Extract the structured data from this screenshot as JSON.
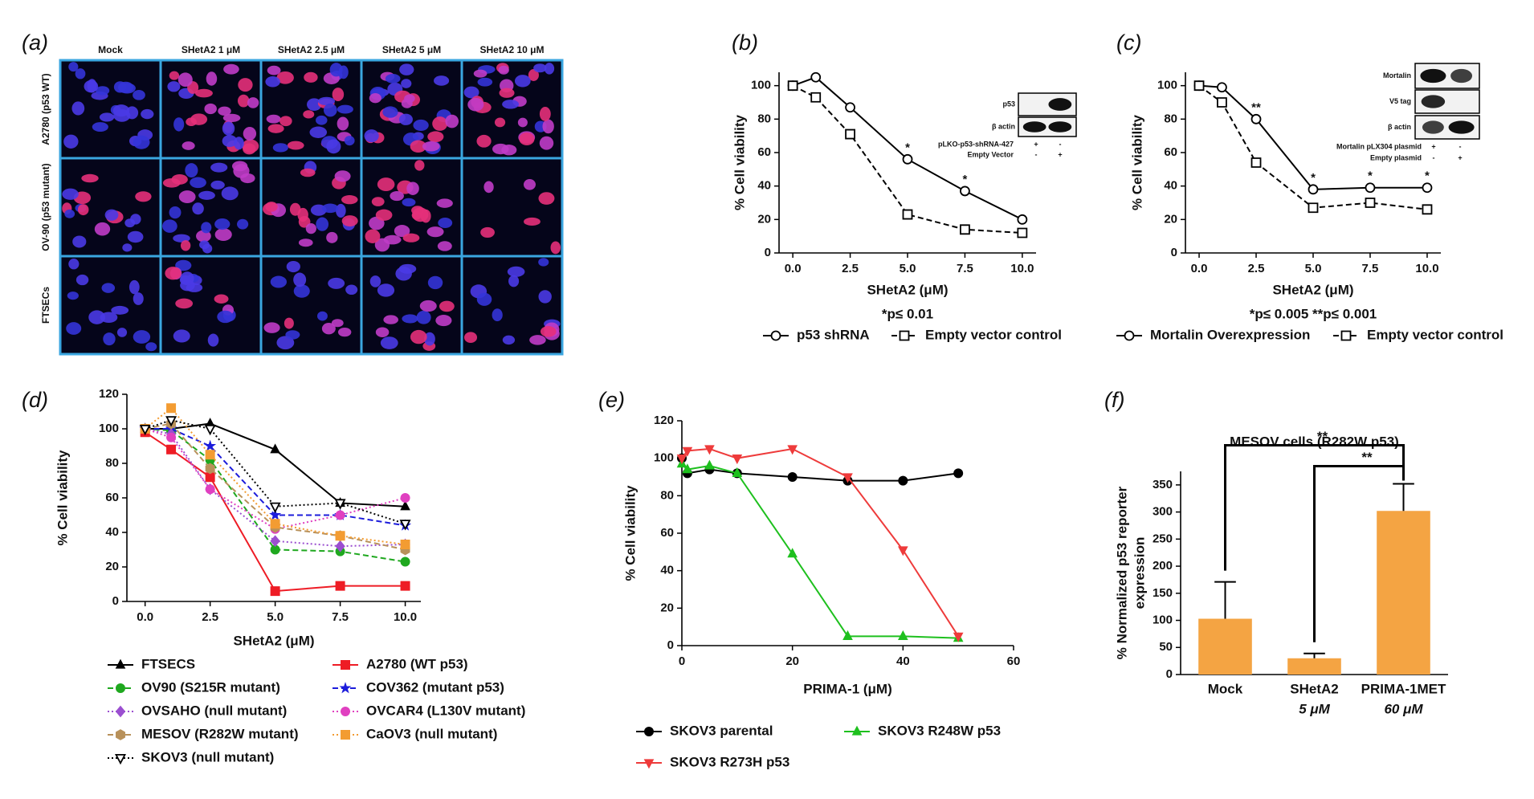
{
  "panel_a": {
    "label": "(a)",
    "columns": [
      "Mock",
      "SHetA2 1 μM",
      "SHetA2 2.5 μM",
      "SHetA2 5 μM",
      "SHetA2 10 μM"
    ],
    "rows": [
      "A2780 (p53 WT)",
      "OV-90 (p53 mutant)",
      "FTSECs"
    ]
  },
  "chart_data": [
    {
      "type": "line",
      "panel_label": "(b)",
      "xlabel": "SHetA2 (μM)",
      "ylabel": "% Cell viability",
      "x": [
        0,
        1,
        2.5,
        5,
        7.5,
        10
      ],
      "xlim": [
        -0.6,
        10.6
      ],
      "ylim": [
        0,
        108
      ],
      "xticks": [
        {
          "value": 0,
          "label": "0.0"
        },
        {
          "value": 2.5,
          "label": "2.5"
        },
        {
          "value": 5,
          "label": "5.0"
        },
        {
          "value": 7.5,
          "label": "7.5"
        },
        {
          "value": 10,
          "label": "10.0"
        }
      ],
      "yticks": [
        0,
        20,
        40,
        60,
        80,
        100
      ],
      "series": [
        {
          "name": "p53 shRNA",
          "color": "#000000",
          "marker": "circle",
          "open": true,
          "line_style": "solid",
          "values": [
            100,
            105,
            87,
            56,
            37,
            20
          ]
        },
        {
          "name": "Empty vector control",
          "color": "#000000",
          "marker": "square",
          "open": true,
          "line_style": "dashed",
          "values": [
            100,
            93,
            71,
            23,
            14,
            12
          ]
        }
      ],
      "annotations": [
        {
          "text": "*",
          "x": 5
        },
        {
          "text": "*",
          "x": 7.5
        }
      ],
      "footnote": "*p≤ 0.01",
      "inset": {
        "rows": [
          "p53",
          "β actin"
        ],
        "conditions": [
          {
            "label": "pLKO-p53-shRNA-427",
            "signs": [
              "+",
              "-"
            ]
          },
          {
            "label": "Empty Vector",
            "signs": [
              "-",
              "+"
            ]
          }
        ]
      }
    },
    {
      "type": "line",
      "panel_label": "(c)",
      "xlabel": "SHetA2 (μM)",
      "ylabel": "% Cell viability",
      "x": [
        0,
        1,
        2.5,
        5,
        7.5,
        10
      ],
      "xlim": [
        -0.6,
        10.6
      ],
      "ylim": [
        0,
        108
      ],
      "xticks": [
        {
          "value": 0,
          "label": "0.0"
        },
        {
          "value": 2.5,
          "label": "2.5"
        },
        {
          "value": 5,
          "label": "5.0"
        },
        {
          "value": 7.5,
          "label": "7.5"
        },
        {
          "value": 10,
          "label": "10.0"
        }
      ],
      "yticks": [
        0,
        20,
        40,
        60,
        80,
        100
      ],
      "series": [
        {
          "name": "Mortalin Overexpression",
          "color": "#000000",
          "marker": "circle",
          "open": true,
          "line_style": "solid",
          "values": [
            100,
            99,
            80,
            38,
            39,
            39
          ]
        },
        {
          "name": "Empty vector control",
          "color": "#000000",
          "marker": "square",
          "open": true,
          "line_style": "dashed",
          "values": [
            100,
            90,
            54,
            27,
            30,
            26
          ]
        }
      ],
      "annotations": [
        {
          "text": "**",
          "x": 2.5
        },
        {
          "text": "*",
          "x": 5
        },
        {
          "text": "*",
          "x": 7.5
        },
        {
          "text": "*",
          "x": 10
        }
      ],
      "footnote": "*p≤ 0.005   **p≤ 0.001",
      "inset": {
        "rows": [
          "Mortalin",
          "V5 tag",
          "β actin"
        ],
        "conditions": [
          {
            "label": "Mortalin pLX304 plasmid",
            "signs": [
              "+",
              "-"
            ]
          },
          {
            "label": "Empty plasmid",
            "signs": [
              "-",
              "+"
            ]
          }
        ]
      }
    },
    {
      "type": "line",
      "panel_label": "(d)",
      "xlabel": "SHetA2 (μM)",
      "ylabel": "% Cell viability",
      "x": [
        0,
        1,
        2.5,
        5,
        7.5,
        10
      ],
      "xlim": [
        -0.7,
        10.6
      ],
      "ylim": [
        0,
        120
      ],
      "xticks": [
        {
          "value": 0,
          "label": "0.0"
        },
        {
          "value": 2.5,
          "label": "2.5"
        },
        {
          "value": 5,
          "label": "5.0"
        },
        {
          "value": 7.5,
          "label": "7.5"
        },
        {
          "value": 10,
          "label": "10.0"
        }
      ],
      "yticks": [
        0,
        20,
        40,
        60,
        80,
        100,
        120
      ],
      "series": [
        {
          "name": "FTSECS",
          "color": "#000000",
          "marker": "triangle",
          "open": false,
          "line_style": "solid",
          "values": [
            100,
            100,
            103,
            88,
            57,
            55
          ]
        },
        {
          "name": "A2780 (WT p53)",
          "color": "#ee1c25",
          "marker": "square",
          "open": false,
          "line_style": "solid",
          "values": [
            98,
            88,
            72,
            6,
            9,
            9
          ]
        },
        {
          "name": "OV90 (S215R mutant)",
          "color": "#1fa81f",
          "marker": "circle",
          "open": false,
          "line_style": "dashed",
          "values": [
            100,
            99,
            82,
            30,
            29,
            23
          ]
        },
        {
          "name": "COV362 (mutant p53)",
          "color": "#1c1cdb",
          "marker": "star",
          "open": false,
          "line_style": "dashed",
          "values": [
            100,
            100,
            90,
            50,
            50,
            44
          ]
        },
        {
          "name": "OVSAHO (null mutant)",
          "color": "#9b4fd0",
          "marker": "diamond",
          "open": false,
          "line_style": "dotted",
          "values": [
            100,
            97,
            65,
            35,
            32,
            33
          ]
        },
        {
          "name": "OVCAR4 (L130V mutant)",
          "color": "#e040c0",
          "marker": "circle",
          "open": false,
          "line_style": "dotted",
          "values": [
            100,
            95,
            65,
            42,
            50,
            60
          ]
        },
        {
          "name": "MESOV (R282W mutant)",
          "color": "#b8915a",
          "marker": "hexagon",
          "open": false,
          "line_style": "dashed",
          "values": [
            100,
            103,
            77,
            43,
            38,
            30
          ]
        },
        {
          "name": "CaOV3 (null mutant)",
          "color": "#f39c32",
          "marker": "square",
          "open": false,
          "line_style": "dotted",
          "values": [
            100,
            112,
            85,
            45,
            38,
            33
          ]
        },
        {
          "name": "SKOV3 (null mutant)",
          "color": "#000000",
          "marker": "triangle-down",
          "open": true,
          "line_style": "dotted",
          "values": [
            100,
            105,
            100,
            55,
            57,
            45
          ]
        }
      ]
    },
    {
      "type": "line",
      "panel_label": "(e)",
      "xlabel": "PRIMA-1 (μM)",
      "ylabel": "% Cell viability",
      "x": [
        0,
        1,
        5,
        10,
        20,
        30,
        40,
        50
      ],
      "xlim": [
        0,
        60
      ],
      "ylim": [
        0,
        120
      ],
      "xticks": [
        0,
        20,
        40,
        60
      ],
      "yticks": [
        0,
        20,
        40,
        60,
        80,
        100,
        120
      ],
      "series": [
        {
          "name": "SKOV3 parental",
          "color": "#000000",
          "marker": "circle",
          "open": false,
          "line_style": "solid",
          "values": [
            100,
            92,
            94,
            92,
            90,
            88,
            88,
            92
          ]
        },
        {
          "name": "SKOV3 R248W p53",
          "color": "#1ec01e",
          "marker": "triangle",
          "open": false,
          "line_style": "solid",
          "values": [
            97,
            94,
            96,
            92,
            49,
            5,
            5,
            4
          ]
        },
        {
          "name": "SKOV3 R273H p53",
          "color": "#ee3b3b",
          "marker": "triangle-down",
          "open": false,
          "line_style": "solid",
          "values": [
            100,
            104,
            105,
            100,
            105,
            90,
            51,
            5
          ]
        }
      ]
    },
    {
      "type": "bar",
      "panel_label": "(f)",
      "title": "MESOV cells (R282W p53)",
      "ylabel": [
        "% Normalized p53 reporter",
        "expression"
      ],
      "categories": [
        "Mock",
        "SHetA2",
        "PRIMA-1MET"
      ],
      "category_sublabels": [
        null,
        "5 μM",
        "60 μM"
      ],
      "values": [
        103,
        30,
        302
      ],
      "errors": [
        68,
        9,
        50
      ],
      "color": "#f4a443",
      "ylim": [
        0,
        375
      ],
      "yticks": [
        0,
        50,
        100,
        150,
        200,
        250,
        300,
        350
      ],
      "significance": [
        {
          "from": 0,
          "to": 2,
          "label": "**"
        },
        {
          "from": 1,
          "to": 2,
          "label": "**"
        }
      ]
    }
  ]
}
